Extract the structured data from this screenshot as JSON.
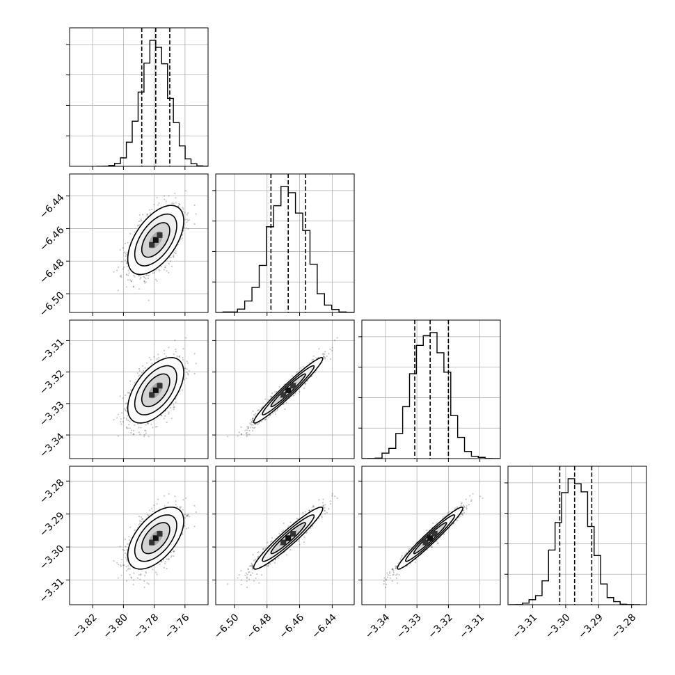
{
  "chart_data": {
    "type": "corner",
    "grid": true,
    "dimensions": [
      {
        "range": [
          -3.835,
          -3.745
        ],
        "ticks": [
          -3.82,
          -3.8,
          -3.78,
          -3.76
        ],
        "tick_labels": [
          "−3.82",
          "−3.80",
          "−3.78",
          "−3.76"
        ],
        "mean": -3.779,
        "quantiles": [
          -3.7881,
          -3.779,
          -3.7699
        ],
        "sigma": 0.0091
      },
      {
        "range": [
          -6.5115,
          -6.4265
        ],
        "ticks": [
          -6.5,
          -6.48,
          -6.46,
          -6.44
        ],
        "tick_labels": [
          "−6.50",
          "−6.48",
          "−6.46",
          "−6.44"
        ],
        "mean": -6.467,
        "quantiles": [
          -6.4776,
          -6.467,
          -6.4563
        ],
        "sigma": 0.0106
      },
      {
        "range": [
          -3.3475,
          -3.3035
        ],
        "ticks": [
          -3.34,
          -3.33,
          -3.32,
          -3.31
        ],
        "tick_labels": [
          "−3.34",
          "−3.33",
          "−3.32",
          "−3.31"
        ],
        "mean": -3.3258,
        "quantiles": [
          -3.3307,
          -3.3258,
          -3.32
        ],
        "sigma": 0.0052
      },
      {
        "range": [
          -3.3175,
          -3.2755
        ],
        "ticks": [
          -3.31,
          -3.3,
          -3.29,
          -3.28
        ],
        "tick_labels": [
          "−3.31",
          "−3.30",
          "−3.29",
          "−3.28"
        ],
        "mean": -3.2973,
        "quantiles": [
          -3.3018,
          -3.2973,
          -3.2921
        ],
        "sigma": 0.0047
      }
    ],
    "correlations": [
      [
        0,
        1,
        0.55
      ],
      [
        0,
        2,
        0.55
      ],
      [
        0,
        3,
        0.55
      ],
      [
        1,
        2,
        0.97
      ],
      [
        1,
        3,
        0.95
      ],
      [
        2,
        3,
        0.97
      ]
    ],
    "contour_levels_sigma": [
      0.5,
      1.0,
      1.5,
      2.0
    ],
    "scatter_points": 1100,
    "histogram_bins": 20,
    "quantile_style": "dashed",
    "colors": {
      "line": "#000000",
      "grid": "#b0b0b0",
      "points": "#000000"
    }
  }
}
